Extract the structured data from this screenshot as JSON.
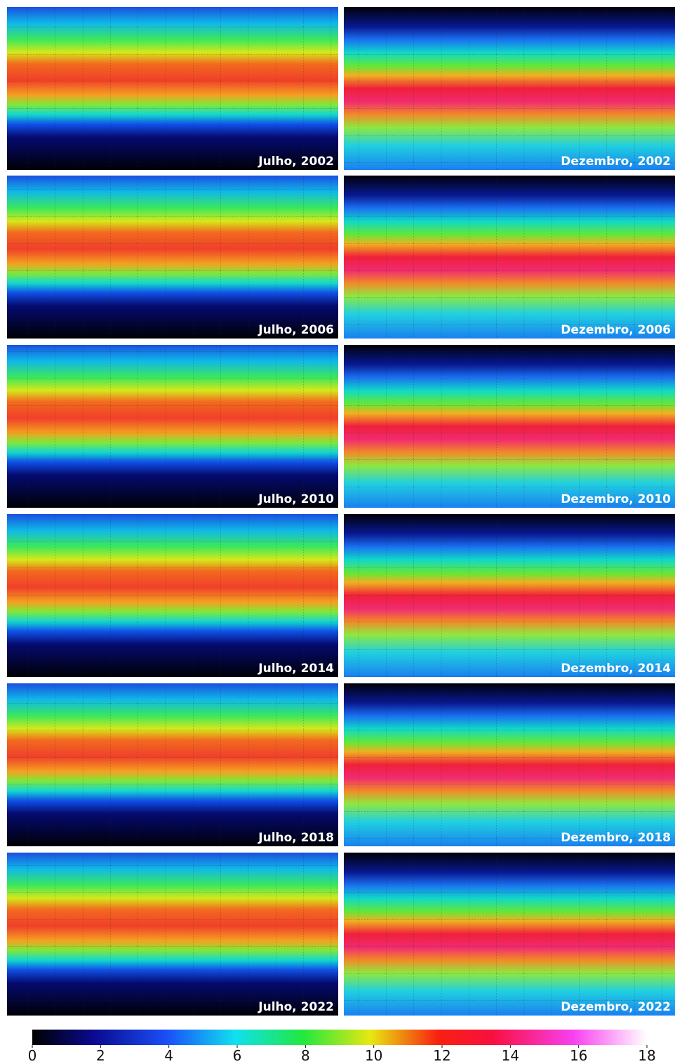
{
  "panels": [
    {
      "label": "Julho, 2002"
    },
    {
      "label": "Dezembro, 2002"
    },
    {
      "label": "Julho, 2006"
    },
    {
      "label": "Dezembro, 2006"
    },
    {
      "label": "Julho, 2010"
    },
    {
      "label": "Dezembro, 2010"
    },
    {
      "label": "Julho, 2014"
    },
    {
      "label": "Dezembro, 2014"
    },
    {
      "label": "Julho, 2018"
    },
    {
      "label": "Dezembro, 2018"
    },
    {
      "label": "Julho, 2022"
    },
    {
      "label": "Dezembro, 2022"
    }
  ],
  "colorbar": {
    "range": [
      0,
      18
    ],
    "ticks": [
      0,
      2,
      4,
      6,
      8,
      10,
      12,
      14,
      16,
      18
    ]
  }
}
